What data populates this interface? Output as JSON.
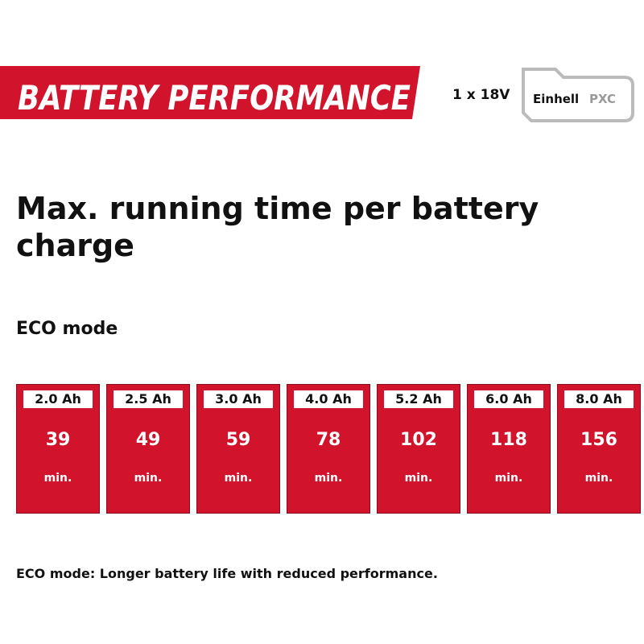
{
  "header": {
    "title": "BATTERY PERFORMANCE",
    "battery": "1 x 18V",
    "brand": "Einhell",
    "line": "PXC"
  },
  "title": "Max. running time per battery charge",
  "mode": "ECO mode",
  "cards": [
    {
      "capacity": "2.0 Ah",
      "time": 39,
      "unit": "min."
    },
    {
      "capacity": "2.5 Ah",
      "time": 49,
      "unit": "min."
    },
    {
      "capacity": "3.0 Ah",
      "time": 59,
      "unit": "min."
    },
    {
      "capacity": "4.0 Ah",
      "time": 78,
      "unit": "min."
    },
    {
      "capacity": "5.2 Ah",
      "time": 102,
      "unit": "min."
    },
    {
      "capacity": "6.0 Ah",
      "time": 118,
      "unit": "min."
    },
    {
      "capacity": "8.0 Ah",
      "time": 156,
      "unit": "min."
    }
  ],
  "footnote": "ECO mode: Longer battery life with reduced performance."
}
